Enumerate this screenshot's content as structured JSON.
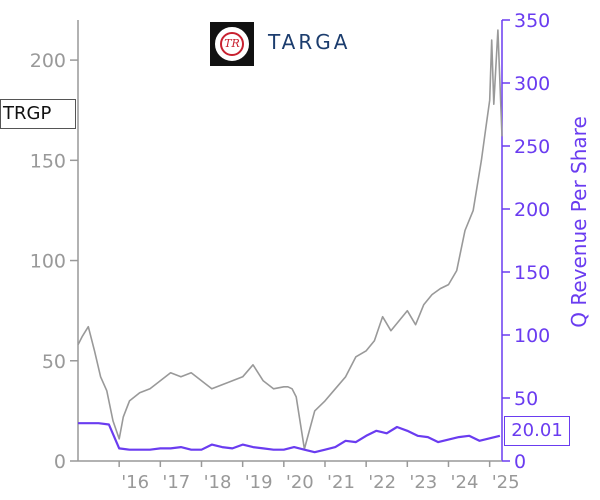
{
  "ticker": "TRGP",
  "last_value": "20.01",
  "logo": {
    "badge_text": "TR",
    "wordmark": "TARGA"
  },
  "colors": {
    "price": "#999999",
    "revenue": "#6a3cf0",
    "axis_left": "#999999",
    "axis_right": "#6a3cf0"
  },
  "chart_data": {
    "type": "line",
    "title": "",
    "xlabel": "",
    "ylabel_left": "",
    "ylabel_right": "Q Revenue Per Share",
    "x_tick_labels": [
      "'16",
      "'17",
      "'18",
      "'19",
      "'20",
      "'21",
      "'22",
      "'23",
      "'24",
      "'25"
    ],
    "x_range": [
      2015.0,
      2025.3
    ],
    "ylim_left": [
      0,
      220
    ],
    "ylim_right": [
      0,
      350
    ],
    "left_ticks": [
      0,
      50,
      100,
      150,
      200
    ],
    "right_ticks": [
      0,
      50,
      100,
      150,
      200,
      250,
      300,
      350
    ],
    "grid": false,
    "series": [
      {
        "axis": "left",
        "color": "#999999",
        "x": [
          2015.0,
          2015.1,
          2015.25,
          2015.4,
          2015.55,
          2015.7,
          2015.85,
          2016.0,
          2016.1,
          2016.25,
          2016.5,
          2016.75,
          2017.0,
          2017.25,
          2017.5,
          2017.75,
          2018.0,
          2018.25,
          2018.5,
          2018.75,
          2019.0,
          2019.25,
          2019.5,
          2019.75,
          2020.0,
          2020.1,
          2020.2,
          2020.3,
          2020.5,
          2020.75,
          2021.0,
          2021.25,
          2021.5,
          2021.75,
          2022.0,
          2022.2,
          2022.4,
          2022.6,
          2022.8,
          2023.0,
          2023.2,
          2023.4,
          2023.6,
          2023.8,
          2024.0,
          2024.2,
          2024.4,
          2024.6,
          2024.8,
          2024.9,
          2025.0,
          2025.05,
          2025.1,
          2025.2,
          2025.3
        ],
        "values": [
          58,
          62,
          67,
          55,
          42,
          35,
          20,
          11,
          22,
          30,
          34,
          36,
          40,
          44,
          42,
          44,
          40,
          36,
          38,
          40,
          42,
          48,
          40,
          36,
          37,
          37,
          36,
          32,
          6,
          25,
          30,
          36,
          42,
          52,
          55,
          60,
          72,
          65,
          70,
          75,
          68,
          78,
          83,
          86,
          88,
          95,
          115,
          125,
          150,
          165,
          180,
          210,
          178,
          215,
          162
        ]
      },
      {
        "axis": "right",
        "color": "#6a3cf0",
        "x": [
          2015.0,
          2015.25,
          2015.5,
          2015.75,
          2016.0,
          2016.25,
          2016.5,
          2016.75,
          2017.0,
          2017.25,
          2017.5,
          2017.75,
          2018.0,
          2018.25,
          2018.5,
          2018.75,
          2019.0,
          2019.25,
          2019.5,
          2019.75,
          2020.0,
          2020.25,
          2020.5,
          2020.75,
          2021.0,
          2021.25,
          2021.5,
          2021.75,
          2022.0,
          2022.25,
          2022.5,
          2022.75,
          2023.0,
          2023.25,
          2023.5,
          2023.75,
          2024.0,
          2024.25,
          2024.5,
          2024.75,
          2025.0,
          2025.25
        ],
        "values": [
          30,
          30,
          30,
          29,
          10,
          9,
          9,
          9,
          10,
          10,
          11,
          9,
          9,
          13,
          11,
          10,
          13,
          11,
          10,
          9,
          9,
          11,
          9,
          7,
          9,
          11,
          16,
          15,
          20,
          24,
          22,
          27,
          24,
          20,
          19,
          15,
          17,
          19,
          20,
          16,
          18,
          20
        ]
      }
    ]
  }
}
